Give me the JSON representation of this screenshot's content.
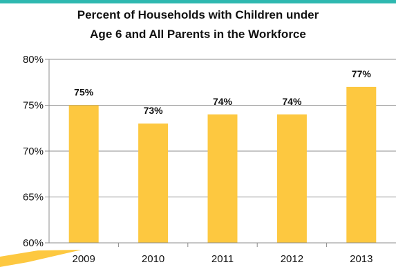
{
  "colors": {
    "bar": "#fdc840",
    "band": "#2eb8b0",
    "accent": "#fdc840"
  },
  "chart_data": {
    "type": "bar",
    "title_lines": [
      "Percent of Households with Children under",
      "Age 6 and All Parents in the Workforce"
    ],
    "categories": [
      "2009",
      "2010",
      "2011",
      "2012",
      "2013"
    ],
    "values": [
      75,
      73,
      74,
      74,
      77
    ],
    "data_labels": [
      "75%",
      "73%",
      "74%",
      "74%",
      "77%"
    ],
    "y_ticks": [
      60,
      65,
      70,
      75,
      80
    ],
    "y_tick_labels": [
      "60%",
      "65%",
      "70%",
      "75%",
      "80%"
    ],
    "ylim": [
      60,
      80
    ],
    "grid": true,
    "xlabel": "",
    "ylabel": ""
  }
}
